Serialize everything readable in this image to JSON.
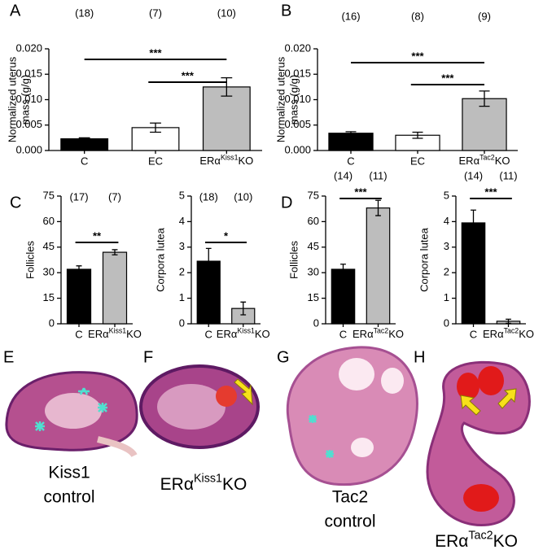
{
  "chart_data": [
    {
      "type": "bar",
      "panel": "A",
      "ylabel": [
        "Normalized uterus",
        "mass (g/g)"
      ],
      "categories": [
        "C",
        "EC",
        "ERαKiss1KO"
      ],
      "values": [
        0.0023,
        0.0045,
        0.0125
      ],
      "errors": [
        0.0002,
        0.0009,
        0.0018
      ],
      "colors": [
        "#000000",
        "#ffffff",
        "#bdbdbd"
      ],
      "n_labels": [
        "(18)",
        "(7)",
        "(10)"
      ],
      "comparisons": [
        {
          "label": "***",
          "between": [
            "C",
            "ERαKiss1KO"
          ]
        },
        {
          "label": "***",
          "between": [
            "EC",
            "ERαKiss1KO"
          ]
        }
      ],
      "ylim": [
        0,
        0.02
      ],
      "yticks": [
        {
          "value": 0,
          "label": "0.000"
        },
        {
          "value": 0.005,
          "label": "0.005"
        },
        {
          "value": 0.01,
          "label": "0.010"
        },
        {
          "value": 0.015,
          "label": "0.015"
        },
        {
          "value": 0.02,
          "label": "0.020"
        }
      ]
    },
    {
      "type": "bar",
      "panel": "B",
      "ylabel": [
        "Normalized uterus",
        "mass (g/g)"
      ],
      "categories": [
        "C",
        "EC",
        "ERαTac2KO"
      ],
      "values": [
        0.0034,
        0.003,
        0.0102
      ],
      "errors": [
        0.0003,
        0.0006,
        0.0015
      ],
      "colors": [
        "#000000",
        "#ffffff",
        "#bdbdbd"
      ],
      "n_labels": [
        "(16)",
        "(8)",
        "(9)"
      ],
      "comparisons": [
        {
          "label": "***",
          "between": [
            "C",
            "ERαTac2KO"
          ]
        },
        {
          "label": "***",
          "between": [
            "EC",
            "ERαTac2KO"
          ]
        }
      ],
      "ylim": [
        0,
        0.02
      ],
      "yticks": [
        {
          "value": 0,
          "label": "0.000"
        },
        {
          "value": 0.005,
          "label": "0.005"
        },
        {
          "value": 0.01,
          "label": "0.010"
        },
        {
          "value": 0.015,
          "label": "0.015"
        },
        {
          "value": 0.02,
          "label": "0.020"
        }
      ]
    },
    {
      "type": "bar",
      "panel": "C",
      "ylabel": [
        "Follicles"
      ],
      "categories": [
        "C",
        "ERαKiss1KO"
      ],
      "values": [
        32,
        42
      ],
      "errors": [
        2,
        1.5
      ],
      "colors": [
        "#000000",
        "#bdbdbd"
      ],
      "n_labels": [
        "(17)",
        "(7)"
      ],
      "comparisons": [
        {
          "label": "**",
          "between": [
            "C",
            "ERαKiss1KO"
          ]
        }
      ],
      "ylim": [
        0,
        75
      ],
      "yticks": [
        0,
        15,
        30,
        45,
        60,
        75
      ]
    },
    {
      "type": "bar",
      "ylabel": [
        "Corpora lutea"
      ],
      "categories": [
        "C",
        "ERαKiss1KO"
      ],
      "values": [
        2.45,
        0.6
      ],
      "errors": [
        0.5,
        0.25
      ],
      "colors": [
        "#000000",
        "#bdbdbd"
      ],
      "n_labels": [
        "(18)",
        "(10)"
      ],
      "comparisons": [
        {
          "label": "*",
          "between": [
            "C",
            "ERαKiss1KO"
          ]
        }
      ],
      "ylim": [
        0,
        5
      ],
      "yticks": [
        0,
        1,
        2,
        3,
        4,
        5
      ]
    },
    {
      "type": "bar",
      "panel": "D",
      "ylabel": [
        "Follicles"
      ],
      "categories": [
        "C",
        "ERαTac2KO"
      ],
      "values": [
        32,
        68
      ],
      "errors": [
        3,
        4.5
      ],
      "colors": [
        "#000000",
        "#bdbdbd"
      ],
      "n_labels": [
        "(14)",
        "(11)"
      ],
      "comparisons": [
        {
          "label": "***",
          "between": [
            "C",
            "ERαTac2KO"
          ]
        }
      ],
      "ylim": [
        0,
        75
      ],
      "yticks": [
        0,
        15,
        30,
        45,
        60,
        75
      ]
    },
    {
      "type": "bar",
      "ylabel": [
        "Corpora lutea"
      ],
      "categories": [
        "C",
        "ERαTac2KO"
      ],
      "values": [
        3.95,
        0.1
      ],
      "errors": [
        0.5,
        0.08
      ],
      "colors": [
        "#000000",
        "#bdbdbd"
      ],
      "n_labels": [
        "(14)",
        "(11)"
      ],
      "comparisons": [
        {
          "label": "***",
          "between": [
            "C",
            "ERαTac2KO"
          ]
        }
      ],
      "ylim": [
        0,
        5
      ],
      "yticks": [
        0,
        1,
        2,
        3,
        4,
        5
      ]
    }
  ],
  "images": [
    {
      "panel": "E",
      "label": [
        "Kiss1",
        "control"
      ]
    },
    {
      "panel": "F",
      "label": [
        "ERαKiss1KO"
      ]
    },
    {
      "panel": "G",
      "label": [
        "Tac2",
        "control"
      ]
    },
    {
      "panel": "H",
      "label": [
        "ERαTac2KO"
      ]
    }
  ]
}
